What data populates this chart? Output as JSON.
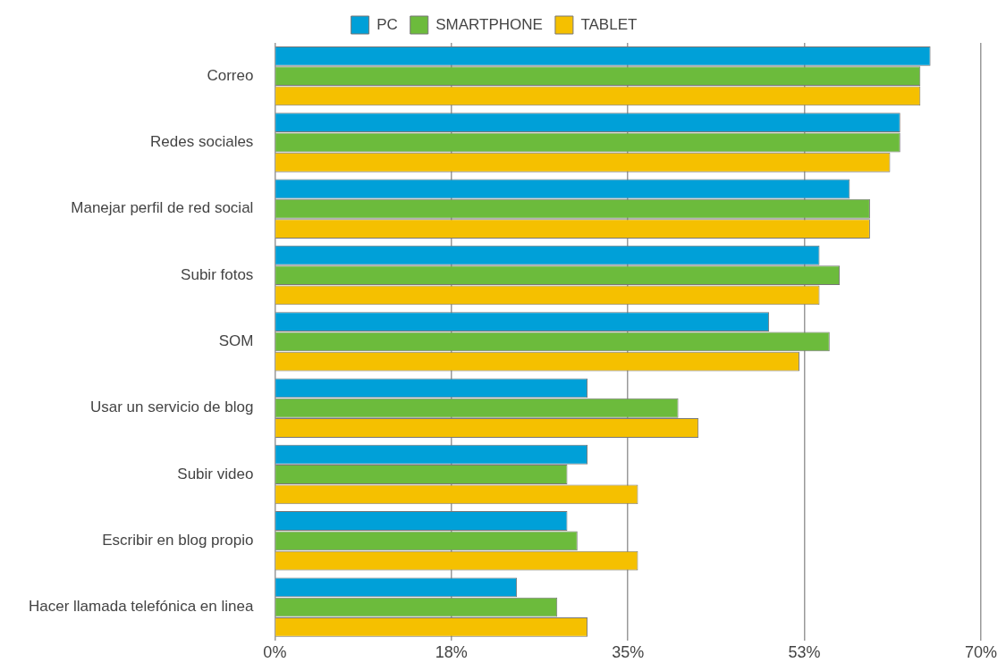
{
  "chart_data": {
    "type": "bar",
    "orientation": "horizontal",
    "categories": [
      "Correo",
      "Redes sociales",
      "Manejar perfil de red social",
      "Subir fotos",
      "SOM",
      "Usar un servicio de blog",
      "Subir video",
      "Escribir en blog propio",
      "Hacer llamada telefónica en linea"
    ],
    "series": [
      {
        "name": "PC",
        "color": "#00a0d8",
        "values": [
          65,
          62,
          57,
          54,
          49,
          31,
          31,
          29,
          24
        ]
      },
      {
        "name": "SMARTPHONE",
        "color": "#6cbb3c",
        "values": [
          64,
          62,
          59,
          56,
          55,
          40,
          29,
          30,
          28
        ]
      },
      {
        "name": "TABLET",
        "color": "#f5c000",
        "values": [
          64,
          61,
          59,
          54,
          52,
          42,
          36,
          36,
          31
        ]
      }
    ],
    "xlim": [
      0,
      70
    ],
    "xticks": [
      {
        "value": 0,
        "label": "0%"
      },
      {
        "value": 17.5,
        "label": "18%"
      },
      {
        "value": 35,
        "label": "35%"
      },
      {
        "value": 52.5,
        "label": "53%"
      },
      {
        "value": 70,
        "label": "70%"
      }
    ],
    "grid": "x",
    "legend": "top"
  }
}
